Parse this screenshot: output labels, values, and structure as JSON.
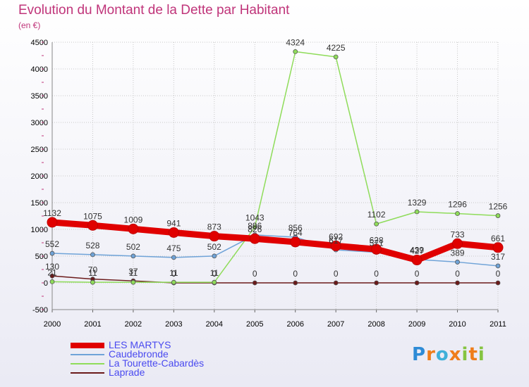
{
  "chart_data": {
    "type": "line",
    "title": "Evolution du Montant de la Dette par Habitant",
    "subtitle": "(en €)",
    "x": [
      "2000",
      "2001",
      "2002",
      "2003",
      "2004",
      "2005",
      "2006",
      "2007",
      "2008",
      "2009",
      "2010",
      "2011"
    ],
    "ylim": [
      -500,
      4500
    ],
    "yticks": [
      -500,
      0,
      500,
      1000,
      1500,
      2000,
      2500,
      3000,
      3500,
      4000,
      4500
    ],
    "grid": true,
    "legend_position": "bottom-left",
    "series": [
      {
        "name": "Laprade",
        "color": "#6b1a1a",
        "values": [
          130,
          70,
          37,
          0,
          0,
          0,
          0,
          0,
          0,
          0,
          0,
          0
        ],
        "labels": [
          "130",
          "70",
          "37",
          "0",
          "0",
          "0",
          "0",
          "0",
          "0",
          "0",
          "0",
          "0"
        ]
      },
      {
        "name": "La Tourette-Cabardès",
        "color": "#8fdc5a",
        "values": [
          21,
          11,
          11,
          11,
          11,
          1043,
          4324,
          4225,
          1102,
          1329,
          1296,
          1256
        ],
        "labels": [
          "21",
          "11",
          "11",
          "11",
          "11",
          "1043",
          "4324",
          "4225",
          "1102",
          "1329",
          "1296",
          "1256"
        ]
      },
      {
        "name": "Caudebronde",
        "color": "#6fa3d8",
        "values": [
          552,
          528,
          502,
          475,
          502,
          896,
          856,
          617,
          571,
          439,
          389,
          317
        ],
        "labels": [
          "552",
          "528",
          "502",
          "475",
          "502",
          "896",
          "856",
          "617",
          "571",
          "439",
          "389",
          "317"
        ]
      },
      {
        "name": "LES MARTYS",
        "color": "#e00000",
        "values": [
          1132,
          1075,
          1009,
          941,
          873,
          826,
          764,
          692,
          628,
          427,
          733,
          661
        ],
        "labels": [
          "1132",
          "1075",
          "1009",
          "941",
          "873",
          "826",
          "764",
          "692",
          "628",
          "427",
          "733",
          "661"
        ]
      }
    ]
  },
  "legend": {
    "items": [
      {
        "label": "LES MARTYS",
        "color": "#e00000"
      },
      {
        "label": "Caudebronde",
        "color": "#6fa3d8"
      },
      {
        "label": "La Tourette-Cabardès",
        "color": "#8fdc5a"
      },
      {
        "label": "Laprade",
        "color": "#6b1a1a"
      }
    ]
  },
  "logo": {
    "letters": [
      "P",
      "r",
      "o",
      "x",
      "i",
      "t",
      "i"
    ]
  }
}
